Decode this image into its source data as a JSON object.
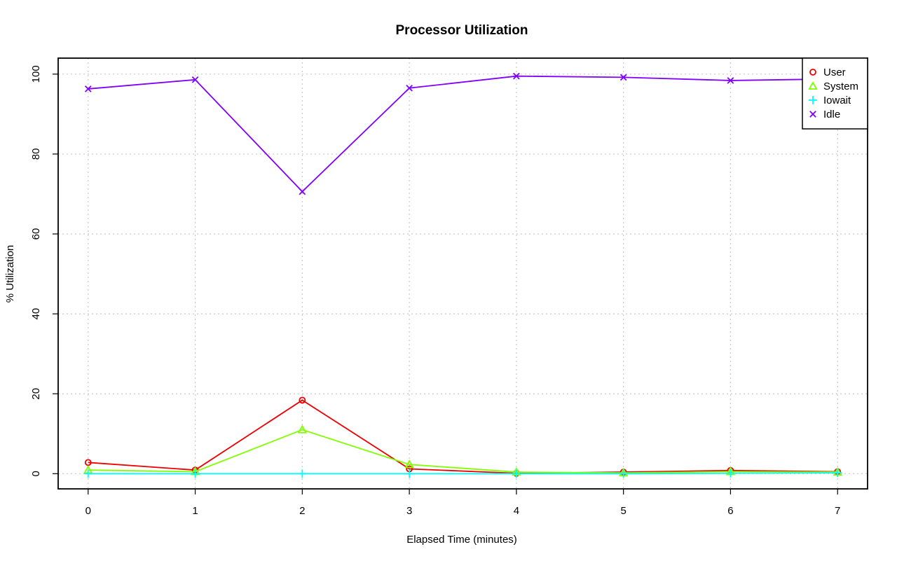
{
  "chart_data": {
    "type": "line",
    "title": "Processor Utilization",
    "xlabel": "Elapsed Time (minutes)",
    "ylabel": "% Utilization",
    "x": [
      0,
      1,
      2,
      3,
      4,
      5,
      6,
      7
    ],
    "xticks": [
      "0",
      "1",
      "2",
      "3",
      "4",
      "5",
      "6",
      "7"
    ],
    "yticks": [
      "0",
      "20",
      "40",
      "60",
      "80",
      "100"
    ],
    "xlim": [
      -0.28,
      7.28
    ],
    "ylim": [
      -3.8,
      104.0
    ],
    "grid": true,
    "legend_position": "top-right",
    "series": [
      {
        "name": "User",
        "color": "#ee0000",
        "marker": "circle",
        "values": [
          2.8,
          0.9,
          18.4,
          1.2,
          0.1,
          0.4,
          0.8,
          0.5
        ]
      },
      {
        "name": "System",
        "color": "#80ff00",
        "marker": "triangle",
        "values": [
          0.9,
          0.5,
          11.0,
          2.3,
          0.4,
          0.2,
          0.5,
          0.4
        ]
      },
      {
        "name": "Iowait",
        "color": "#00ffff",
        "marker": "plus",
        "values": [
          0.0,
          0.0,
          0.0,
          0.0,
          0.0,
          0.0,
          0.1,
          0.2
        ]
      },
      {
        "name": "Idle",
        "color": "#8000ff",
        "marker": "cross",
        "values": [
          96.3,
          98.6,
          70.6,
          96.5,
          99.5,
          99.2,
          98.4,
          98.8
        ]
      }
    ]
  }
}
